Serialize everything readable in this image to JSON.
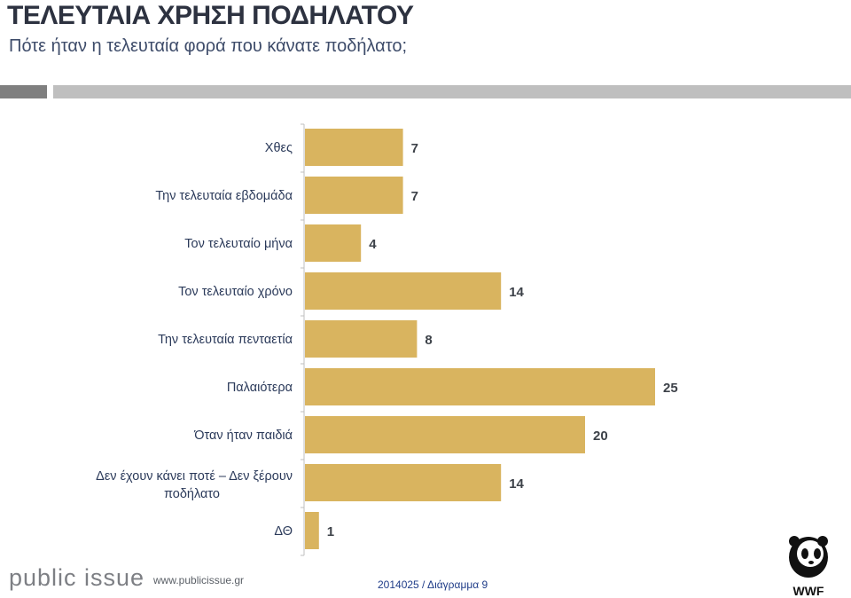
{
  "header": {
    "title": "ΤΕΛΕΥΤΑΙΑ ΧΡΗΣΗ ΠΟΔΗΛΑΤΟΥ",
    "subtitle": "Πότε ήταν η τελευταία φορά που κάνατε ποδήλατο;"
  },
  "chart_data": {
    "type": "bar",
    "orientation": "horizontal",
    "categories": [
      "Χθες",
      "Την τελευταία εβδομάδα",
      "Τον τελευταίο μήνα",
      "Τον τελευταίο χρόνο",
      "Την τελευταία πενταετία",
      "Παλαιότερα",
      "Όταν ήταν παιδιά",
      [
        "Δεν έχουν κάνει ποτέ – Δεν ξέρουν",
        "ποδήλατο"
      ],
      "ΔΘ"
    ],
    "values": [
      7,
      7,
      4,
      14,
      8,
      25,
      20,
      14,
      1
    ],
    "xlim": [
      0,
      25
    ],
    "bar_color": "#d9b45f",
    "grid": false,
    "legend": "none"
  },
  "footer": {
    "brand": "public issue",
    "url": "www.publicissue.gr",
    "code": "2014025 / Διάγραμμα 9",
    "logo_text": "WWF"
  },
  "colors": {
    "title": "#2d3240",
    "subtitle": "#3e4c6a",
    "bar": "#d9b45f",
    "axis": "#bfbfbf"
  }
}
